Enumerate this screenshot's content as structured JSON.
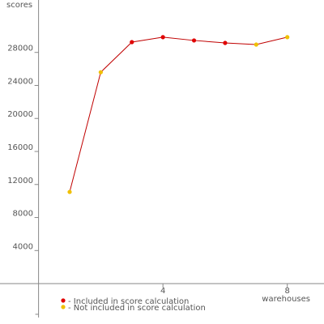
{
  "chart_data": {
    "type": "line",
    "y_label": "scores",
    "x_label": "warehouses",
    "x": [
      1,
      2,
      3,
      4,
      5,
      6,
      7,
      8
    ],
    "values": [
      11100,
      25600,
      29250,
      29850,
      29450,
      29150,
      28950,
      29850
    ],
    "line_color": "#c00000",
    "point_colors": [
      "#f0c000",
      "#f0c000",
      "#e00000",
      "#e00000",
      "#e00000",
      "#e00000",
      "#f0c000",
      "#f0c000"
    ],
    "legend": [
      {
        "name": "- Included in score calculation",
        "color": "#e00000"
      },
      {
        "name": "- Not included in score calculation",
        "color": "#f0c000"
      }
    ],
    "xlim": [
      -1.24,
      9.18
    ],
    "ylim": [
      -4900,
      34350
    ],
    "xticks": [
      4,
      8
    ],
    "yticks": [
      4000,
      8000,
      12000,
      16000,
      20000,
      24000,
      28000
    ]
  }
}
